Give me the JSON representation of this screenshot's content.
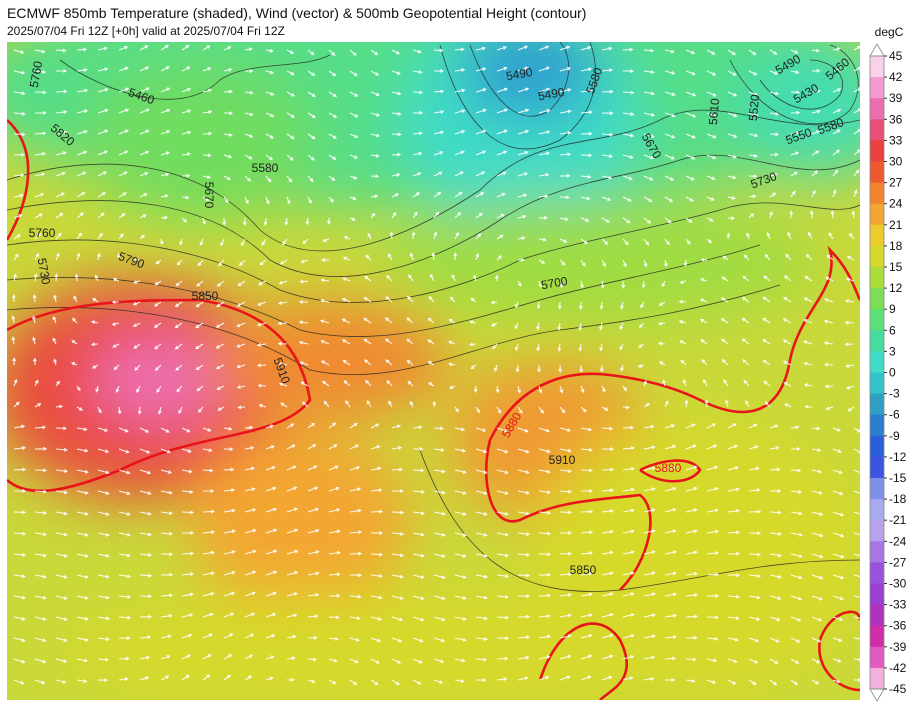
{
  "header": {
    "title": "ECMWF 850mb Temperature (shaded), Wind (vector) & 500mb Geopotential Height (contour)",
    "subtitle": "2025/07/04 Fri 12Z [+0h] valid at 2025/07/04 Fri 12Z"
  },
  "colorbar": {
    "unit": "degC",
    "ticks": [
      45,
      42,
      39,
      36,
      33,
      30,
      27,
      24,
      21,
      18,
      15,
      12,
      9,
      6,
      3,
      0,
      -3,
      -6,
      -9,
      -12,
      -15,
      -18,
      -21,
      -24,
      -27,
      -30,
      -33,
      -36,
      -39,
      -42,
      -45
    ],
    "colors": [
      "#fbd0ea",
      "#f39ad0",
      "#ea6fae",
      "#e8507a",
      "#e8403e",
      "#ee5a30",
      "#f2832f",
      "#f3a632",
      "#eccb2c",
      "#d6d92c",
      "#aadc3a",
      "#7fdc56",
      "#5cde78",
      "#45dc9e",
      "#3fdcc6",
      "#33c3c8",
      "#2fa0c4",
      "#2c7fcc",
      "#2b5fd6",
      "#3c55e0",
      "#8090e8",
      "#a8aaee",
      "#b9a2ec",
      "#a676e4",
      "#9a52dc",
      "#9b3ed2",
      "#b033c0",
      "#d02ea8",
      "#e05ac0",
      "#f2b0dc"
    ]
  },
  "contours": {
    "labels": [
      "5760",
      "5460",
      "5820",
      "5670",
      "5580",
      "5490",
      "5490",
      "5580",
      "5610",
      "5520",
      "5490",
      "5460",
      "5430",
      "5550",
      "5580",
      "5670",
      "5730",
      "5700",
      "5790",
      "5760",
      "5730",
      "5850",
      "5910",
      "5880",
      "5910",
      "5880",
      "5850"
    ]
  }
}
